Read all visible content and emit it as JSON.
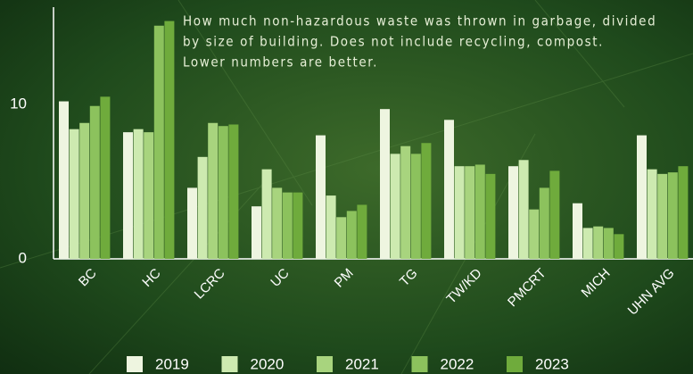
{
  "chart_data": {
    "type": "bar",
    "title": [
      "How much non-hazardous waste was thrown in garbage, divided",
      "by size of building. Does not include recycling, compost.",
      "Lower numbers are better."
    ],
    "categories": [
      "BC",
      "HC",
      "LCRC",
      "UC",
      "PM",
      "TG",
      "TW/KD",
      "PMCRT",
      "MICH",
      "UHN AVG"
    ],
    "series": [
      {
        "name": "2019",
        "color": "#eef5e0",
        "values": [
          10.2,
          8.2,
          4.6,
          3.4,
          8.0,
          9.7,
          9.0,
          6.0,
          3.6,
          8.0
        ]
      },
      {
        "name": "2020",
        "color": "#cdeab0",
        "values": [
          8.4,
          8.4,
          6.6,
          5.8,
          4.1,
          6.8,
          6.0,
          6.4,
          2.0,
          5.8
        ]
      },
      {
        "name": "2021",
        "color": "#a8d47e",
        "values": [
          8.8,
          8.2,
          8.8,
          4.6,
          2.7,
          7.3,
          6.0,
          3.2,
          2.1,
          5.5
        ]
      },
      {
        "name": "2022",
        "color": "#8cc25d",
        "values": [
          9.9,
          15.1,
          8.6,
          4.3,
          3.1,
          6.8,
          6.1,
          4.6,
          2.0,
          5.6
        ]
      },
      {
        "name": "2023",
        "color": "#6fab3c",
        "values": [
          10.5,
          15.4,
          8.7,
          4.3,
          3.5,
          7.5,
          5.5,
          5.7,
          1.6,
          6.0
        ]
      }
    ],
    "ylim": [
      0,
      16.3
    ],
    "yticks": [
      0,
      10
    ],
    "grid": false
  }
}
